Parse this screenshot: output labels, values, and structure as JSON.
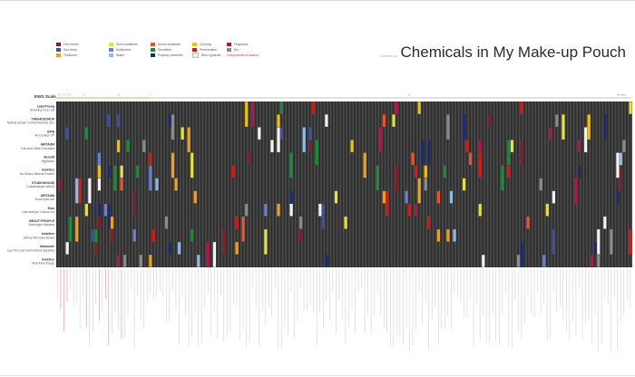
{
  "header": {
    "small_label": "Column ca",
    "title": "Chemicals in My Make-up Pouch"
  },
  "legend": {
    "items": [
      {
        "label": "Film former",
        "color": "#7b1f2e",
        "style": ""
      },
      {
        "label": "Skin conditioner",
        "color": "#e8e23a",
        "style": ""
      },
      {
        "label": "Aroma enhancer",
        "color": "#e8542a",
        "style": ""
      },
      {
        "label": "Coloring",
        "color": "#f2c200",
        "style": ""
      },
      {
        "label": "Fragrance",
        "color": "#b0154e",
        "style": ""
      },
      {
        "label": "Sun block",
        "color": "#3d4fa8",
        "style": ""
      },
      {
        "label": "Moisturizer",
        "color": "#6a7fd1",
        "style": ""
      },
      {
        "label": "Emulsifier",
        "color": "#1e8a3c",
        "style": ""
      },
      {
        "label": "Preservative",
        "color": "#d11a1a",
        "style": ""
      },
      {
        "label": "Etc.",
        "color": "#8c8c8c",
        "style": ""
      },
      {
        "label": "Thickener",
        "color": "#f0a020",
        "style": ""
      },
      {
        "label": "Water",
        "color": "#8fb9e8",
        "style": ""
      },
      {
        "label": "Property controller",
        "color": "#1b2b6e",
        "style": ""
      },
      {
        "label": "Skin Lightener",
        "color": "#f4f4f4",
        "style": ""
      },
      {
        "label": "Components of caution",
        "color": "",
        "style": "red"
      }
    ]
  },
  "ews": {
    "label": "EWG Scale",
    "ticks": [
      "0",
      "1",
      "2",
      "3",
      "4",
      "5",
      "6",
      "7",
      "8",
      "No data"
    ]
  },
  "chart_data": {
    "type": "heatmap",
    "title": "Chemicals in My Make-up Pouch",
    "products": [
      {
        "brand": "LabelYoung",
        "name": "Shocking Toner sat"
      },
      {
        "brand": "THEFACESHOP",
        "name": "Natural Sebum Control Moisture Sun"
      },
      {
        "brand": "IOPE",
        "name": "Air Cushion XP"
      },
      {
        "brand": "ARITAUM",
        "name": "Full cover Stick Concealer"
      },
      {
        "brand": "Benefit",
        "name": "Highbeam"
      },
      {
        "brand": "Innisfree",
        "name": "No Sebum Mineral Powder"
      },
      {
        "brand": "STUDIOHOUSE",
        "name": "Lookatmyeyes 8A404"
      },
      {
        "brand": "ARITAUM",
        "name": "Mono eyes sse"
      },
      {
        "brand": "Etos",
        "name": "Last wote girl Cushion Ks"
      },
      {
        "brand": "BEAUTYPEOPLE",
        "name": "Bodologue Mascara"
      },
      {
        "brand": "Innisfree",
        "name": "Skinny Microcara Brown"
      },
      {
        "brand": "Mamonde",
        "name": "Lipy Tint color balm Intense Appletea"
      },
      {
        "brand": "Innisfree",
        "name": "Real Fluid Rouge"
      }
    ],
    "columns": 180,
    "categories": [
      "Film former",
      "Skin conditioner",
      "Aroma enhancer",
      "Coloring",
      "Fragrance",
      "Sun block",
      "Moisturizer",
      "Emulsifier",
      "Preservative",
      "Etc.",
      "Thickener",
      "Water",
      "Property controller",
      "Skin Lightener"
    ],
    "base_color": "#2f2f2f",
    "stripe_color": "#4a4a4a",
    "legend_position": "top-left"
  }
}
